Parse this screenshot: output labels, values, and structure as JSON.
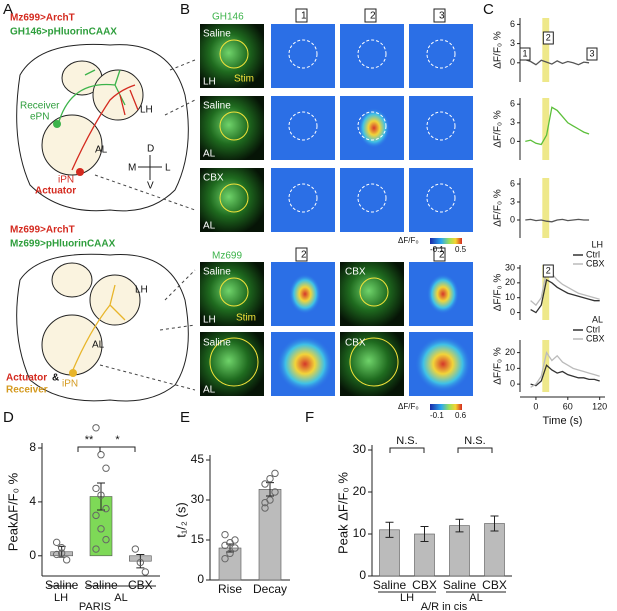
{
  "panel_labels": [
    "A",
    "B",
    "C",
    "D",
    "E",
    "F"
  ],
  "panel_a": {
    "texts": [
      "Mz699>ArchT",
      "GH146>pHluorinCAAX",
      "LH",
      "Receiver",
      "ePN",
      "AL",
      "iPN",
      "Actuator",
      "D",
      "M",
      "L",
      "V",
      "Mz699>ArchT",
      "Mz699>pHluorinCAAX",
      "LH",
      "AL",
      "Actuator",
      "&",
      "Receiver",
      "iPN"
    ]
  },
  "panel_b": {
    "texts": [
      "GH146",
      "1",
      "2",
      "3",
      "Saline",
      "LH",
      "Stim",
      "Saline",
      "AL",
      "CBX",
      "AL",
      "ΔF/F₀",
      "-0.1",
      "0.5",
      "Mz699",
      "2",
      "2",
      "Saline",
      "LH",
      "Stim",
      "CBX",
      "Saline",
      "AL",
      "CBX",
      "ΔF/F₀",
      "-0.1",
      "0.6"
    ]
  },
  "chart_data": [
    {
      "type": "line",
      "ylabel": "ΔF/F₀ %",
      "xlim": [
        -30,
        130
      ],
      "ylim": [
        -3,
        7
      ],
      "yticks": [
        0,
        3,
        6
      ],
      "highlight": [
        12,
        25
      ],
      "annotations": [
        "1",
        "2",
        "3"
      ],
      "x": [
        -20,
        -10,
        0,
        10,
        20,
        30,
        40,
        50,
        60,
        70,
        80,
        90,
        100
      ],
      "series": [
        {
          "color": "#555555",
          "values": [
            0.5,
            0.2,
            -0.3,
            0.4,
            0.1,
            -0.2,
            0.3,
            -0.1,
            0.2,
            0,
            -0.3,
            0.1,
            0
          ]
        }
      ]
    },
    {
      "type": "line",
      "ylabel": "ΔF/F₀ %",
      "xlim": [
        -30,
        130
      ],
      "ylim": [
        -3,
        7
      ],
      "yticks": [
        0,
        3,
        6
      ],
      "highlight": [
        12,
        25
      ],
      "x": [
        -20,
        -10,
        0,
        10,
        20,
        30,
        40,
        50,
        60,
        70,
        80,
        90,
        100
      ],
      "series": [
        {
          "color": "#5cbf3a",
          "values": [
            0,
            0.2,
            -0.3,
            -0.5,
            1,
            5.5,
            5,
            4,
            3,
            2.5,
            2,
            1.5,
            1.2
          ]
        }
      ]
    },
    {
      "type": "line",
      "ylabel": "ΔF/F₀ %",
      "xlim": [
        -30,
        130
      ],
      "ylim": [
        -3,
        7
      ],
      "yticks": [
        0,
        3,
        6
      ],
      "highlight": [
        12,
        25
      ],
      "x": [
        -20,
        -10,
        0,
        10,
        20,
        30,
        40,
        50,
        60,
        70,
        80,
        90,
        100
      ],
      "series": [
        {
          "color": "#555555",
          "values": [
            0,
            0.1,
            -0.1,
            0,
            -0.2,
            -0.3,
            0,
            0.1,
            -0.1,
            0,
            0.1,
            0,
            0
          ]
        }
      ]
    },
    {
      "type": "line",
      "ylabel": "ΔF/F₀ %",
      "xlim": [
        -30,
        130
      ],
      "ylim": [
        -5,
        32
      ],
      "yticks": [
        0,
        10,
        20,
        30
      ],
      "highlight": [
        12,
        25
      ],
      "annotations": [
        "2"
      ],
      "legend_title": "LH",
      "x": [
        -10,
        0,
        10,
        20,
        30,
        40,
        50,
        60,
        70,
        80,
        90,
        100,
        110,
        120
      ],
      "series": [
        {
          "name": "Ctrl",
          "color": "#333333",
          "values": [
            2,
            0,
            5,
            22,
            20,
            17,
            15,
            13,
            12,
            11,
            10,
            9,
            8,
            8
          ]
        },
        {
          "name": "CBX",
          "color": "#bbbbbb",
          "values": [
            8,
            5,
            10,
            28,
            26,
            22,
            19,
            17,
            15,
            13,
            12,
            11,
            10,
            9
          ]
        }
      ]
    },
    {
      "type": "line",
      "ylabel": "ΔF/F₀ %",
      "xlabel": "Time (s)",
      "xlim": [
        -30,
        130
      ],
      "ylim": [
        -5,
        28
      ],
      "yticks": [
        0,
        10,
        20
      ],
      "xticks": [
        0,
        60,
        120
      ],
      "highlight": [
        12,
        25
      ],
      "legend_title": "AL",
      "x": [
        -10,
        0,
        10,
        20,
        30,
        40,
        50,
        60,
        70,
        80,
        90,
        100,
        110,
        120
      ],
      "series": [
        {
          "name": "Ctrl",
          "color": "#333333",
          "values": [
            0,
            -1,
            2,
            12,
            9,
            7,
            8,
            6,
            5,
            4,
            4,
            3,
            3,
            2
          ]
        },
        {
          "name": "CBX",
          "color": "#bbbbbb",
          "values": [
            -2,
            0,
            5,
            20,
            15,
            18,
            14,
            12,
            10,
            9,
            8,
            7,
            6,
            5
          ]
        }
      ]
    },
    {
      "type": "bar",
      "ylabel": "PeakΔF/F₀ %",
      "categories": [
        "Saline",
        "Saline",
        "CBX"
      ],
      "groups": [
        "LH",
        "AL"
      ],
      "footer": "PARIS",
      "significance": [
        "**",
        "*"
      ],
      "values": [
        0.3,
        4.4,
        -0.4
      ],
      "errors": [
        0.4,
        1,
        0.5
      ],
      "colors": [
        "#bbbbbb",
        "#7ed957",
        "#bbbbbb"
      ],
      "points": [
        [
          0.1,
          0.6,
          -0.3,
          1,
          0.2
        ],
        [
          9.5,
          7.5,
          6.5,
          5,
          4.5,
          3.5,
          3,
          2,
          1.2,
          0.5
        ],
        [
          0.5,
          -0.5,
          -1.2
        ]
      ],
      "ylim": [
        -1.5,
        8
      ],
      "yticks": [
        0,
        4,
        8
      ]
    },
    {
      "type": "bar",
      "ylabel": "t₁/₂ (s)",
      "categories": [
        "Rise",
        "Decay"
      ],
      "values": [
        12,
        34
      ],
      "errors": [
        1.5,
        2.5
      ],
      "colors": [
        "#bbbbbb",
        "#bbbbbb"
      ],
      "points": [
        [
          8,
          10,
          12,
          13,
          14,
          15,
          17
        ],
        [
          27,
          30,
          33,
          36,
          38,
          40,
          29
        ]
      ],
      "ylim": [
        0,
        45
      ],
      "yticks": [
        0,
        15,
        30,
        45
      ]
    },
    {
      "type": "bar",
      "ylabel": "Peak ΔF/F₀ %",
      "categories": [
        "Saline",
        "CBX",
        "Saline",
        "CBX"
      ],
      "groups": [
        "LH",
        "AL"
      ],
      "footer": "A/R in cis",
      "significance": [
        "N.S.",
        "N.S."
      ],
      "values": [
        11,
        10,
        12,
        12.5
      ],
      "errors": [
        1.8,
        1.8,
        1.5,
        1.8
      ],
      "colors": [
        "#bbbbbb",
        "#bbbbbb",
        "#bbbbbb",
        "#bbbbbb"
      ],
      "ylim": [
        0,
        30
      ],
      "yticks": [
        0,
        10,
        20,
        30
      ]
    }
  ]
}
